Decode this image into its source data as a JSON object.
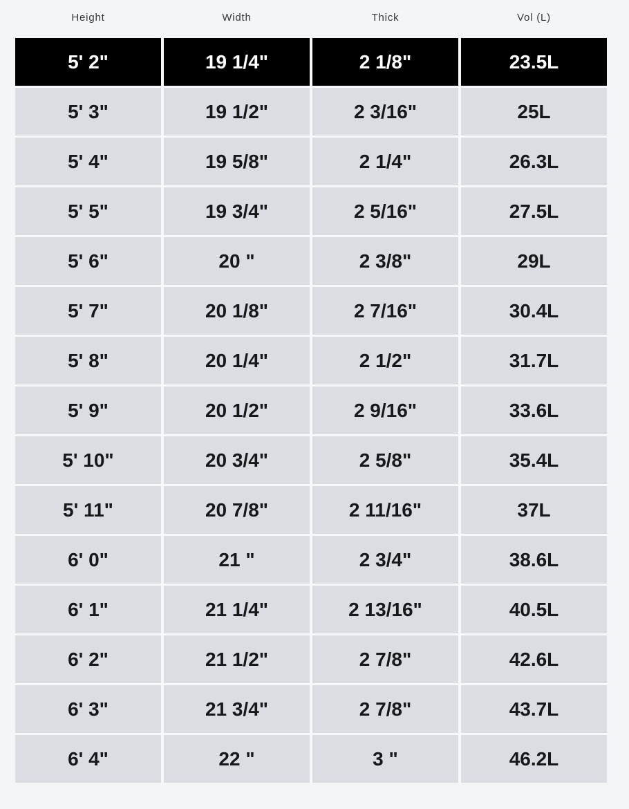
{
  "table": {
    "headers": [
      "Height",
      "Width",
      "Thick",
      "Vol (L)"
    ],
    "rows": [
      {
        "height": "5' 2\"",
        "width": "19 1/4\"",
        "thick": "2 1/8\"",
        "vol": "23.5L",
        "selected": true
      },
      {
        "height": "5' 3\"",
        "width": "19 1/2\"",
        "thick": "2 3/16\"",
        "vol": "25L",
        "selected": false
      },
      {
        "height": "5' 4\"",
        "width": "19 5/8\"",
        "thick": "2 1/4\"",
        "vol": "26.3L",
        "selected": false
      },
      {
        "height": "5' 5\"",
        "width": "19 3/4\"",
        "thick": "2 5/16\"",
        "vol": "27.5L",
        "selected": false
      },
      {
        "height": "5' 6\"",
        "width": "20 \"",
        "thick": "2 3/8\"",
        "vol": "29L",
        "selected": false
      },
      {
        "height": "5' 7\"",
        "width": "20 1/8\"",
        "thick": "2 7/16\"",
        "vol": "30.4L",
        "selected": false
      },
      {
        "height": "5' 8\"",
        "width": "20 1/4\"",
        "thick": "2 1/2\"",
        "vol": "31.7L",
        "selected": false
      },
      {
        "height": "5' 9\"",
        "width": "20 1/2\"",
        "thick": "2 9/16\"",
        "vol": "33.6L",
        "selected": false
      },
      {
        "height": "5' 10\"",
        "width": "20 3/4\"",
        "thick": "2 5/8\"",
        "vol": "35.4L",
        "selected": false
      },
      {
        "height": "5' 11\"",
        "width": "20 7/8\"",
        "thick": "2 11/16\"",
        "vol": "37L",
        "selected": false
      },
      {
        "height": "6' 0\"",
        "width": "21 \"",
        "thick": "2 3/4\"",
        "vol": "38.6L",
        "selected": false
      },
      {
        "height": "6' 1\"",
        "width": "21 1/4\"",
        "thick": "2 13/16\"",
        "vol": "40.5L",
        "selected": false
      },
      {
        "height": "6' 2\"",
        "width": "21 1/2\"",
        "thick": "2 7/8\"",
        "vol": "42.6L",
        "selected": false
      },
      {
        "height": "6' 3\"",
        "width": "21 3/4\"",
        "thick": "2 7/8\"",
        "vol": "43.7L",
        "selected": false
      },
      {
        "height": "6' 4\"",
        "width": "22 \"",
        "thick": "3 \"",
        "vol": "46.2L",
        "selected": false
      }
    ]
  },
  "colors": {
    "page_background": "#f4f5f7",
    "cell_background": "#dcdde3",
    "selected_row_background": "#000000",
    "selected_row_text": "#ffffff",
    "cell_text": "#17181a",
    "header_text": "#34373c"
  }
}
